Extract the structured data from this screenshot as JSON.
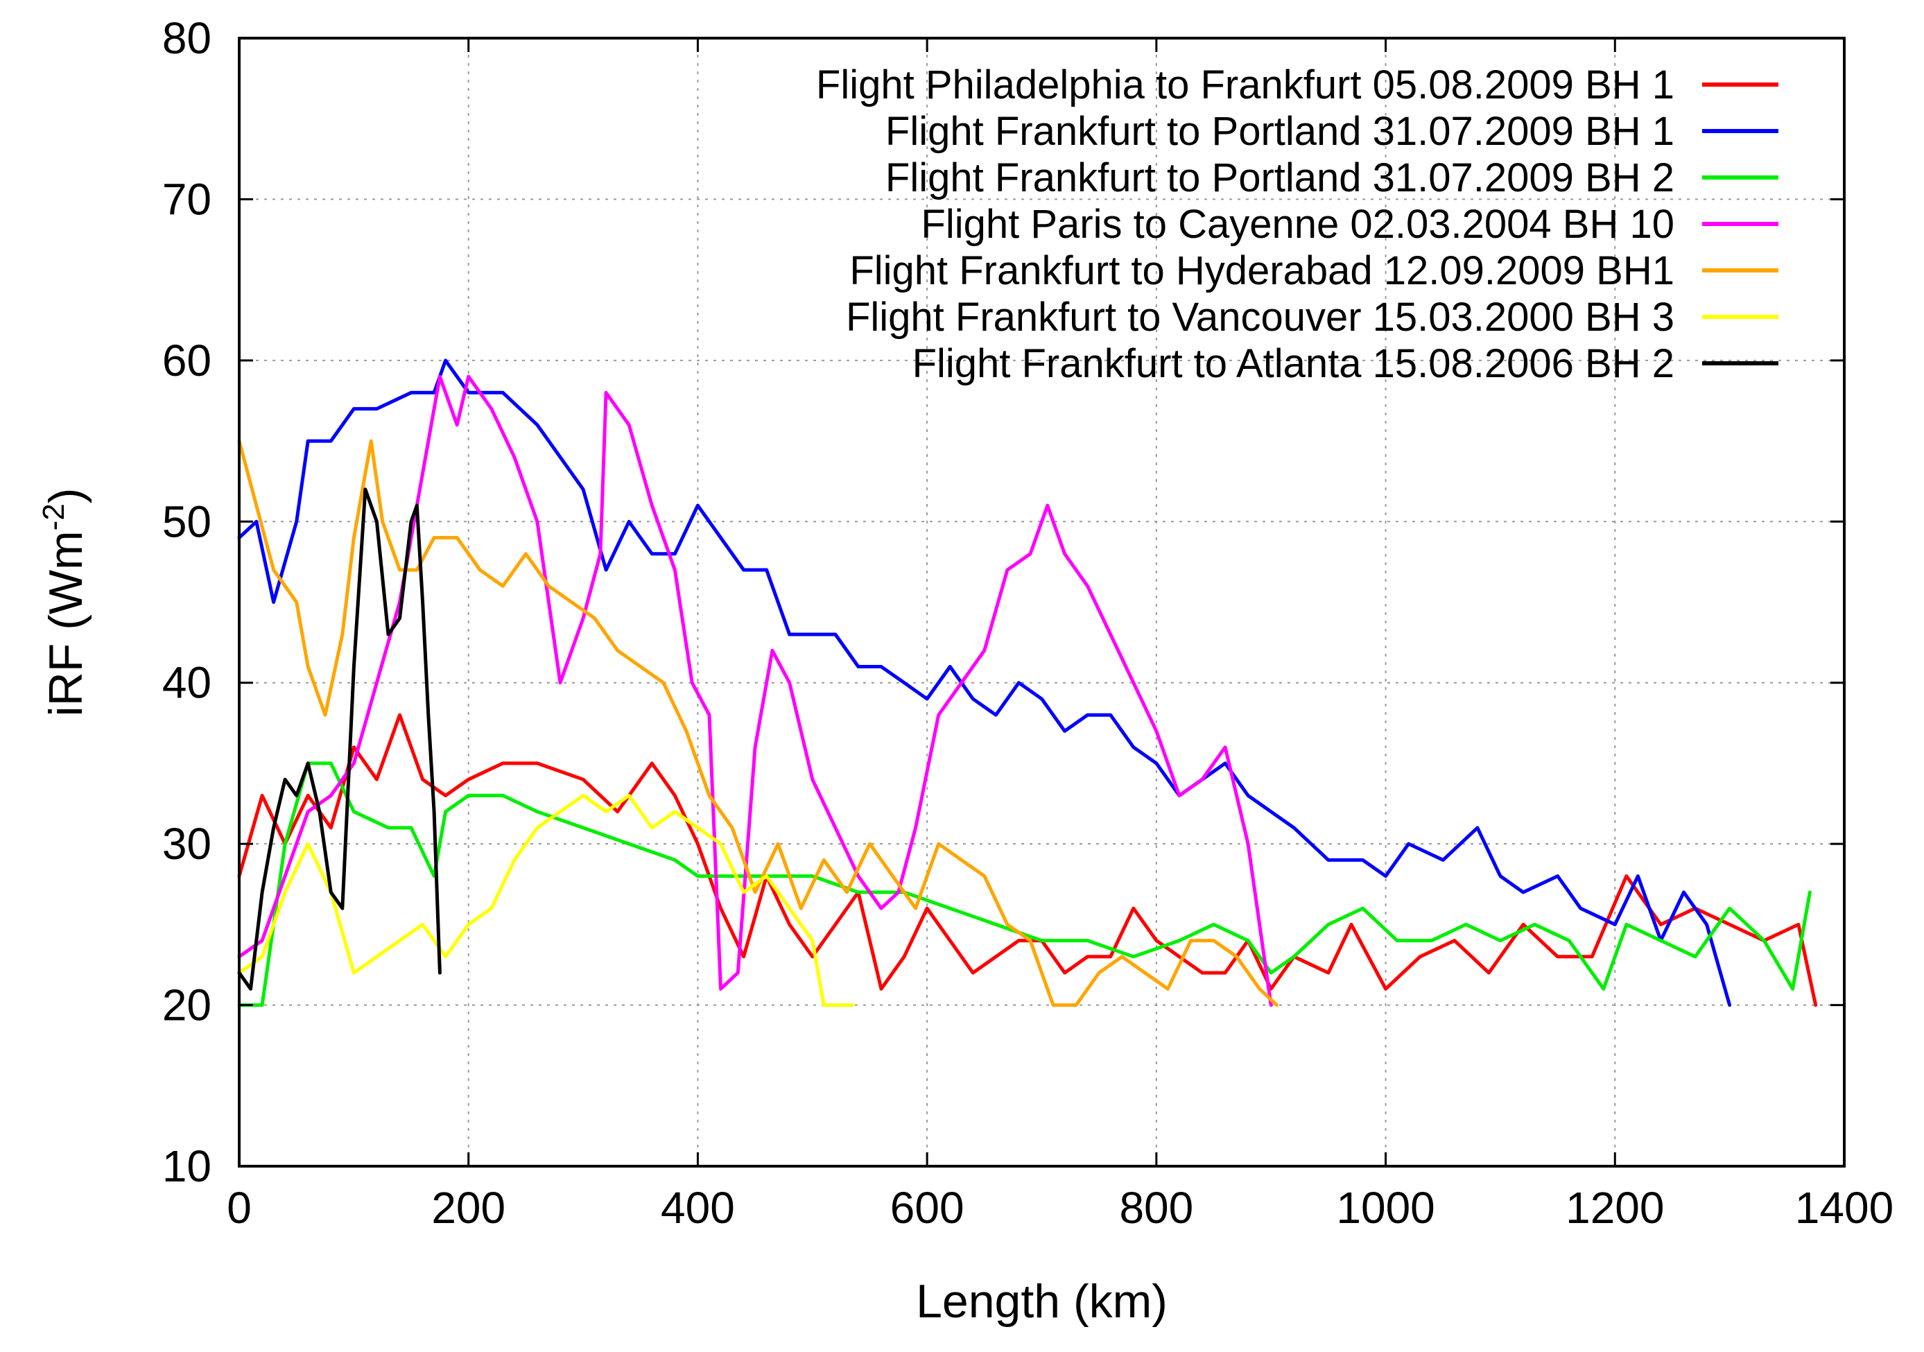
{
  "chart_data": {
    "type": "line",
    "title": "",
    "xlabel": "Length (km)",
    "ylabel_main": "iRF (Wm",
    "ylabel_sup": "-2",
    "ylabel_close": ")",
    "xlim": [
      0,
      1400
    ],
    "ylim": [
      10,
      80
    ],
    "xticks": [
      0,
      200,
      400,
      600,
      800,
      1000,
      1200,
      1400
    ],
    "yticks": [
      10,
      20,
      30,
      40,
      50,
      60,
      70,
      80
    ],
    "grid": true,
    "legend_position": "top-right",
    "series": [
      {
        "name": "Flight Philadelphia to Frankfurt 05.08.2009 BH 1",
        "color": "#ff0000",
        "points": [
          [
            0,
            28
          ],
          [
            20,
            33
          ],
          [
            40,
            30
          ],
          [
            60,
            33
          ],
          [
            80,
            31
          ],
          [
            100,
            36
          ],
          [
            120,
            34
          ],
          [
            140,
            38
          ],
          [
            160,
            34
          ],
          [
            180,
            33
          ],
          [
            200,
            34
          ],
          [
            230,
            35
          ],
          [
            260,
            35
          ],
          [
            300,
            34
          ],
          [
            330,
            32
          ],
          [
            360,
            35
          ],
          [
            380,
            33
          ],
          [
            400,
            30
          ],
          [
            420,
            26
          ],
          [
            440,
            23
          ],
          [
            460,
            28
          ],
          [
            480,
            25
          ],
          [
            500,
            23
          ],
          [
            520,
            25
          ],
          [
            540,
            27
          ],
          [
            560,
            21
          ],
          [
            580,
            23
          ],
          [
            600,
            26
          ],
          [
            620,
            24
          ],
          [
            640,
            22
          ],
          [
            660,
            23
          ],
          [
            680,
            24
          ],
          [
            700,
            24
          ],
          [
            720,
            22
          ],
          [
            740,
            23
          ],
          [
            760,
            23
          ],
          [
            780,
            26
          ],
          [
            800,
            24
          ],
          [
            820,
            23
          ],
          [
            840,
            22
          ],
          [
            860,
            22
          ],
          [
            880,
            24
          ],
          [
            900,
            21
          ],
          [
            920,
            23
          ],
          [
            950,
            22
          ],
          [
            970,
            25
          ],
          [
            1000,
            21
          ],
          [
            1030,
            23
          ],
          [
            1060,
            24
          ],
          [
            1090,
            22
          ],
          [
            1120,
            25
          ],
          [
            1150,
            23
          ],
          [
            1180,
            23
          ],
          [
            1210,
            28
          ],
          [
            1240,
            25
          ],
          [
            1270,
            26
          ],
          [
            1300,
            25
          ],
          [
            1330,
            24
          ],
          [
            1360,
            25
          ],
          [
            1375,
            20
          ]
        ]
      },
      {
        "name": "Flight Frankfurt to Portland 31.07.2009 BH 1",
        "color": "#0000ff",
        "points": [
          [
            0,
            49
          ],
          [
            15,
            50
          ],
          [
            30,
            45
          ],
          [
            50,
            50
          ],
          [
            60,
            55
          ],
          [
            80,
            55
          ],
          [
            100,
            57
          ],
          [
            120,
            57
          ],
          [
            150,
            58
          ],
          [
            170,
            58
          ],
          [
            180,
            60
          ],
          [
            200,
            58
          ],
          [
            230,
            58
          ],
          [
            260,
            56
          ],
          [
            280,
            54
          ],
          [
            300,
            52
          ],
          [
            320,
            47
          ],
          [
            340,
            50
          ],
          [
            360,
            48
          ],
          [
            380,
            48
          ],
          [
            400,
            51
          ],
          [
            420,
            49
          ],
          [
            440,
            47
          ],
          [
            460,
            47
          ],
          [
            480,
            43
          ],
          [
            500,
            43
          ],
          [
            520,
            43
          ],
          [
            540,
            41
          ],
          [
            560,
            41
          ],
          [
            580,
            40
          ],
          [
            600,
            39
          ],
          [
            620,
            41
          ],
          [
            640,
            39
          ],
          [
            660,
            38
          ],
          [
            680,
            40
          ],
          [
            700,
            39
          ],
          [
            720,
            37
          ],
          [
            740,
            38
          ],
          [
            760,
            38
          ],
          [
            780,
            36
          ],
          [
            800,
            35
          ],
          [
            820,
            33
          ],
          [
            840,
            34
          ],
          [
            860,
            35
          ],
          [
            880,
            33
          ],
          [
            900,
            32
          ],
          [
            920,
            31
          ],
          [
            950,
            29
          ],
          [
            980,
            29
          ],
          [
            1000,
            28
          ],
          [
            1020,
            30
          ],
          [
            1050,
            29
          ],
          [
            1080,
            31
          ],
          [
            1100,
            28
          ],
          [
            1120,
            27
          ],
          [
            1150,
            28
          ],
          [
            1170,
            26
          ],
          [
            1200,
            25
          ],
          [
            1220,
            28
          ],
          [
            1240,
            24
          ],
          [
            1260,
            27
          ],
          [
            1280,
            25
          ],
          [
            1300,
            20
          ]
        ]
      },
      {
        "name": "Flight Frankfurt to Portland 31.07.2009 BH 2",
        "color": "#00ee00",
        "points": [
          [
            0,
            20
          ],
          [
            20,
            20
          ],
          [
            40,
            30
          ],
          [
            60,
            35
          ],
          [
            80,
            35
          ],
          [
            100,
            32
          ],
          [
            130,
            31
          ],
          [
            150,
            31
          ],
          [
            170,
            28
          ],
          [
            180,
            32
          ],
          [
            200,
            33
          ],
          [
            230,
            33
          ],
          [
            260,
            32
          ],
          [
            300,
            31
          ],
          [
            340,
            30
          ],
          [
            380,
            29
          ],
          [
            400,
            28
          ],
          [
            420,
            28
          ],
          [
            460,
            28
          ],
          [
            500,
            28
          ],
          [
            540,
            27
          ],
          [
            580,
            27
          ],
          [
            620,
            26
          ],
          [
            660,
            25
          ],
          [
            700,
            24
          ],
          [
            740,
            24
          ],
          [
            780,
            23
          ],
          [
            820,
            24
          ],
          [
            850,
            25
          ],
          [
            880,
            24
          ],
          [
            900,
            22
          ],
          [
            920,
            23
          ],
          [
            950,
            25
          ],
          [
            980,
            26
          ],
          [
            1010,
            24
          ],
          [
            1040,
            24
          ],
          [
            1070,
            25
          ],
          [
            1100,
            24
          ],
          [
            1130,
            25
          ],
          [
            1160,
            24
          ],
          [
            1190,
            21
          ],
          [
            1210,
            25
          ],
          [
            1240,
            24
          ],
          [
            1270,
            23
          ],
          [
            1300,
            26
          ],
          [
            1330,
            24
          ],
          [
            1355,
            21
          ],
          [
            1370,
            27
          ]
        ]
      },
      {
        "name": "Flight Paris to Cayenne 02.03.2004 BH 10",
        "color": "#ff00ff",
        "points": [
          [
            0,
            23
          ],
          [
            20,
            24
          ],
          [
            40,
            28
          ],
          [
            60,
            32
          ],
          [
            80,
            33
          ],
          [
            100,
            35
          ],
          [
            120,
            40
          ],
          [
            140,
            45
          ],
          [
            160,
            53
          ],
          [
            175,
            59
          ],
          [
            190,
            56
          ],
          [
            200,
            59
          ],
          [
            220,
            57
          ],
          [
            240,
            54
          ],
          [
            260,
            50
          ],
          [
            280,
            40
          ],
          [
            300,
            44
          ],
          [
            315,
            48
          ],
          [
            320,
            58
          ],
          [
            340,
            56
          ],
          [
            360,
            51
          ],
          [
            380,
            47
          ],
          [
            395,
            40
          ],
          [
            410,
            38
          ],
          [
            420,
            21
          ],
          [
            435,
            22
          ],
          [
            450,
            36
          ],
          [
            465,
            42
          ],
          [
            480,
            40
          ],
          [
            500,
            34
          ],
          [
            520,
            31
          ],
          [
            540,
            28
          ],
          [
            560,
            26
          ],
          [
            575,
            27
          ],
          [
            590,
            31
          ],
          [
            610,
            38
          ],
          [
            630,
            40
          ],
          [
            650,
            42
          ],
          [
            670,
            47
          ],
          [
            690,
            48
          ],
          [
            705,
            51
          ],
          [
            720,
            48
          ],
          [
            740,
            46
          ],
          [
            760,
            43
          ],
          [
            780,
            40
          ],
          [
            800,
            37
          ],
          [
            820,
            33
          ],
          [
            840,
            34
          ],
          [
            860,
            36
          ],
          [
            880,
            30
          ],
          [
            900,
            20
          ]
        ]
      },
      {
        "name": "Flight Frankfurt to Hyderabad 12.09.2009 BH1",
        "color": "#ffa500",
        "points": [
          [
            0,
            55
          ],
          [
            15,
            51
          ],
          [
            30,
            47
          ],
          [
            50,
            45
          ],
          [
            60,
            41
          ],
          [
            75,
            38
          ],
          [
            90,
            43
          ],
          [
            100,
            49
          ],
          [
            115,
            55
          ],
          [
            125,
            50
          ],
          [
            140,
            47
          ],
          [
            155,
            47
          ],
          [
            170,
            49
          ],
          [
            190,
            49
          ],
          [
            210,
            47
          ],
          [
            230,
            46
          ],
          [
            250,
            48
          ],
          [
            270,
            46
          ],
          [
            290,
            45
          ],
          [
            310,
            44
          ],
          [
            330,
            42
          ],
          [
            350,
            41
          ],
          [
            370,
            40
          ],
          [
            390,
            37
          ],
          [
            410,
            33
          ],
          [
            430,
            31
          ],
          [
            450,
            27
          ],
          [
            470,
            30
          ],
          [
            490,
            26
          ],
          [
            510,
            29
          ],
          [
            530,
            27
          ],
          [
            550,
            30
          ],
          [
            570,
            28
          ],
          [
            590,
            26
          ],
          [
            610,
            30
          ],
          [
            630,
            29
          ],
          [
            650,
            28
          ],
          [
            670,
            25
          ],
          [
            690,
            24
          ],
          [
            710,
            20
          ],
          [
            730,
            20
          ],
          [
            750,
            22
          ],
          [
            770,
            23
          ],
          [
            790,
            22
          ],
          [
            810,
            21
          ],
          [
            830,
            24
          ],
          [
            850,
            24
          ],
          [
            870,
            23
          ],
          [
            890,
            21
          ],
          [
            905,
            20
          ]
        ]
      },
      {
        "name": "Flight Frankfurt to Vancouver 15.03.2000 BH 3",
        "color": "#ffff00",
        "points": [
          [
            0,
            22
          ],
          [
            20,
            23
          ],
          [
            40,
            27
          ],
          [
            60,
            30
          ],
          [
            80,
            27
          ],
          [
            100,
            22
          ],
          [
            120,
            23
          ],
          [
            140,
            24
          ],
          [
            160,
            25
          ],
          [
            180,
            23
          ],
          [
            200,
            25
          ],
          [
            220,
            26
          ],
          [
            240,
            29
          ],
          [
            260,
            31
          ],
          [
            280,
            32
          ],
          [
            300,
            33
          ],
          [
            320,
            32
          ],
          [
            340,
            33
          ],
          [
            360,
            31
          ],
          [
            380,
            32
          ],
          [
            400,
            31
          ],
          [
            420,
            30
          ],
          [
            440,
            27
          ],
          [
            460,
            28
          ],
          [
            480,
            26
          ],
          [
            500,
            24
          ],
          [
            510,
            20
          ],
          [
            520,
            20
          ],
          [
            535,
            20
          ]
        ]
      },
      {
        "name": "Flight Frankfurt to Atlanta 15.08.2006 BH 2",
        "color": "#000000",
        "points": [
          [
            0,
            22
          ],
          [
            10,
            21
          ],
          [
            20,
            27
          ],
          [
            30,
            31
          ],
          [
            40,
            34
          ],
          [
            50,
            33
          ],
          [
            60,
            35
          ],
          [
            70,
            32
          ],
          [
            80,
            27
          ],
          [
            90,
            26
          ],
          [
            100,
            41
          ],
          [
            110,
            52
          ],
          [
            120,
            50
          ],
          [
            130,
            43
          ],
          [
            140,
            44
          ],
          [
            150,
            50
          ],
          [
            155,
            51
          ],
          [
            160,
            45
          ],
          [
            165,
            38
          ],
          [
            170,
            32
          ],
          [
            175,
            22
          ]
        ]
      }
    ]
  }
}
